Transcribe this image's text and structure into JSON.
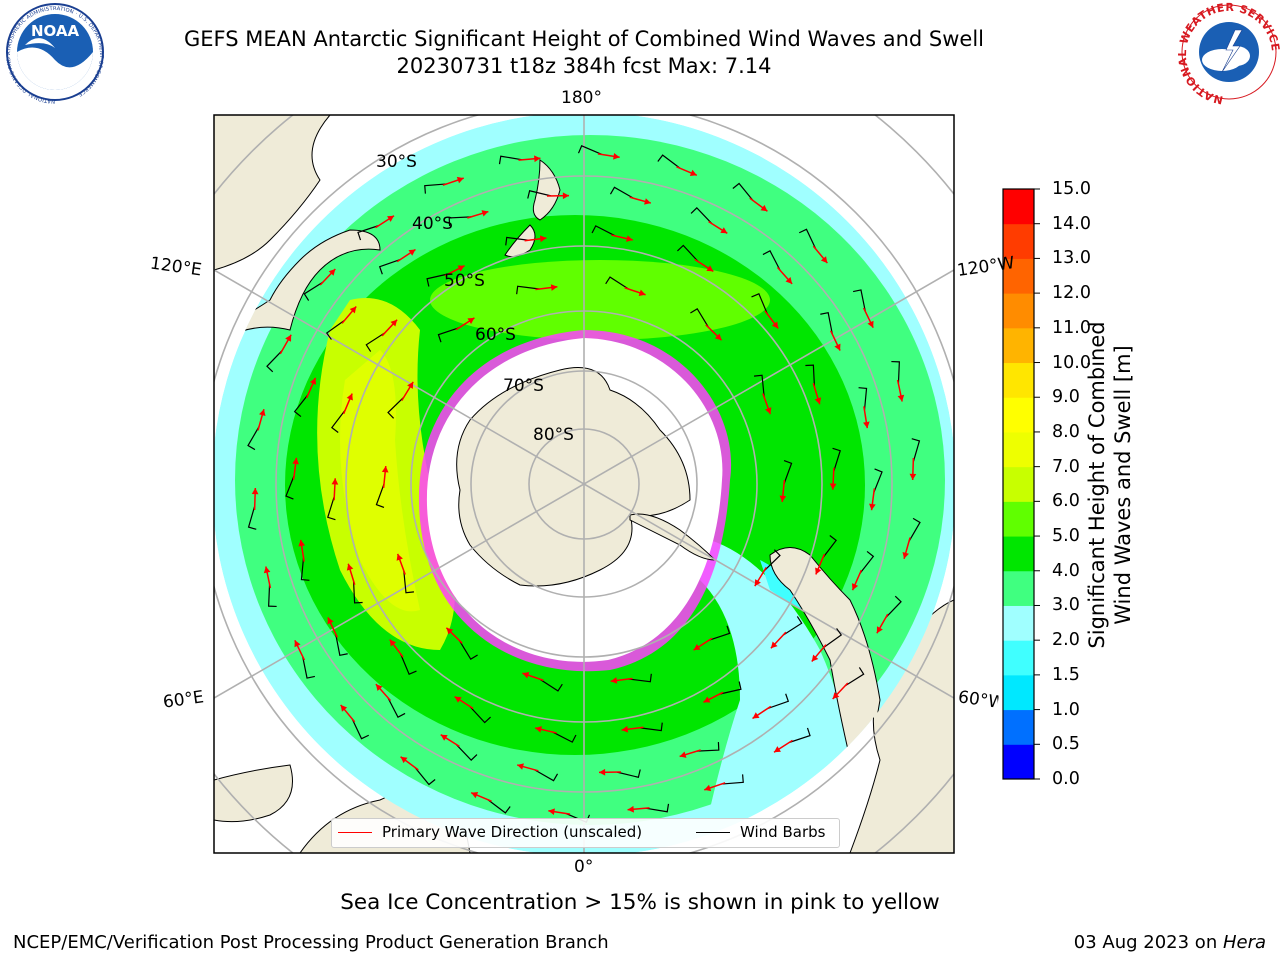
{
  "title": {
    "line1": "GEFS MEAN Antarctic Significant Height of Combined Wind Waves and Swell",
    "line2": "20230731 t18z 384h fcst   Max: 7.14"
  },
  "logos": {
    "left": {
      "text": "NOAA",
      "ring_text": "NATIONAL OCEANIC AND ATMOSPHERIC ADMINISTRATION · U.S. DEPARTMENT OF COMMERCE"
    },
    "right": {
      "ring_text": "NATIONAL WEATHER SERVICE"
    }
  },
  "map": {
    "lon_labels": {
      "top": "180°",
      "bottom": "0°",
      "upper_left": "120°E",
      "upper_right": "120°W",
      "lower_left": "60°E",
      "lower_right": "60°W"
    },
    "lat_labels": [
      "30°S",
      "40°S",
      "50°S",
      "60°S",
      "70°S",
      "80°S"
    ],
    "legend": {
      "primary_wave": {
        "label": "Primary Wave Direction (unscaled)",
        "color": "#ff0000"
      },
      "wind_barbs": {
        "label": "Wind Barbs",
        "color": "#000000"
      }
    }
  },
  "colorbar": {
    "title_line1": "Significant Height of Combined",
    "title_line2": "Wind Waves and Swell [m]",
    "ticks": [
      "0.0",
      "0.5",
      "1.0",
      "1.5",
      "2.0",
      "3.0",
      "4.0",
      "5.0",
      "6.0",
      "7.0",
      "8.0",
      "9.0",
      "10.0",
      "11.0",
      "12.0",
      "13.0",
      "14.0",
      "15.0"
    ],
    "colors": [
      "#0000ff",
      "#0070ff",
      "#00e8ff",
      "#40ffff",
      "#a0ffff",
      "#40ff80",
      "#00e600",
      "#60ff00",
      "#c8ff00",
      "#eeff00",
      "#ffff00",
      "#ffe600",
      "#ffb400",
      "#ff8c00",
      "#ff6400",
      "#ff3c00",
      "#ff0000"
    ]
  },
  "notes": {
    "sea_ice": "Sea Ice Concentration > 15% is shown in pink to yellow",
    "footer_left": "NCEP/EMC/Verification Post Processing Product Generation Branch",
    "footer_date": "03 Aug 2023 on ",
    "footer_machine": "Hera"
  }
}
